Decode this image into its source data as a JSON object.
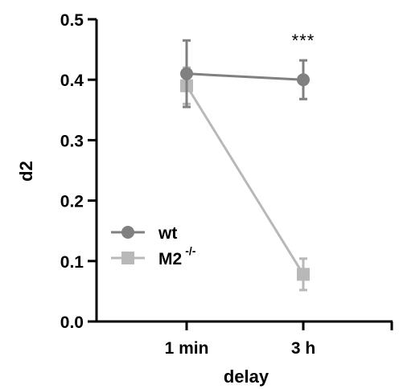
{
  "chart_data": {
    "type": "line",
    "xlabel": "delay",
    "ylabel": "d2",
    "categories": [
      "1 min",
      "3 h"
    ],
    "ylim": [
      0,
      0.5
    ],
    "yticks": [
      "0.0",
      "0.1",
      "0.2",
      "0.3",
      "0.4",
      "0.5"
    ],
    "series": [
      {
        "name": "wt",
        "marker": "circle",
        "color": "#808080",
        "values": [
          0.41,
          0.4
        ],
        "error": [
          0.055,
          0.032
        ]
      },
      {
        "name": "M2",
        "name_superscript": "-/-",
        "marker": "square",
        "color": "#b8b8b8",
        "values": [
          0.39,
          0.078
        ],
        "error": [
          0.03,
          0.026
        ]
      }
    ],
    "annotation": {
      "text": "***",
      "category": "3 h"
    },
    "legend_position": "lower-left",
    "grid": false
  }
}
